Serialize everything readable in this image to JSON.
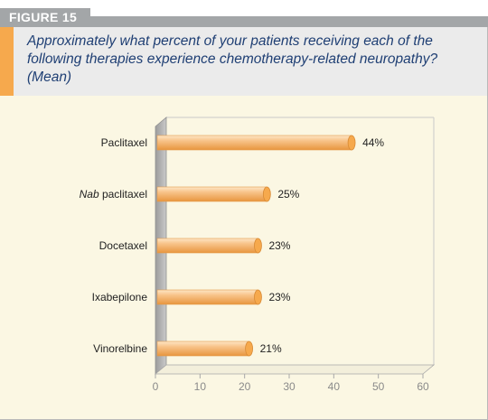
{
  "figure_label": "FIGURE 15",
  "question": "Approximately what percent of your patients receiving each of the following therapies experience chemotherapy-related neuropathy? (Mean)",
  "colors": {
    "accent": "#f6a94d",
    "bar": "#f8b878",
    "header": "#a3a6a8",
    "question_text": "#1f3f74",
    "plot_bg": "#fbf7e3"
  },
  "chart_data": {
    "type": "bar",
    "orientation": "horizontal",
    "title": "",
    "xlabel": "",
    "ylabel": "",
    "categories": [
      "Paclitaxel",
      "Nab paclitaxel",
      "Docetaxel",
      "Ixabepilone",
      "Vinorelbine"
    ],
    "category_italic_prefix": [
      "",
      "Nab",
      "",
      "",
      ""
    ],
    "values": [
      44,
      25,
      23,
      23,
      21
    ],
    "value_labels": [
      "44%",
      "25%",
      "23%",
      "23%",
      "21%"
    ],
    "xlim": [
      0,
      60
    ],
    "xticks": [
      0,
      10,
      20,
      30,
      40,
      50,
      60
    ],
    "xtick_labels": [
      "0",
      "10",
      "20",
      "30",
      "40",
      "50",
      "60"
    ],
    "grid": false,
    "legend": "none"
  }
}
